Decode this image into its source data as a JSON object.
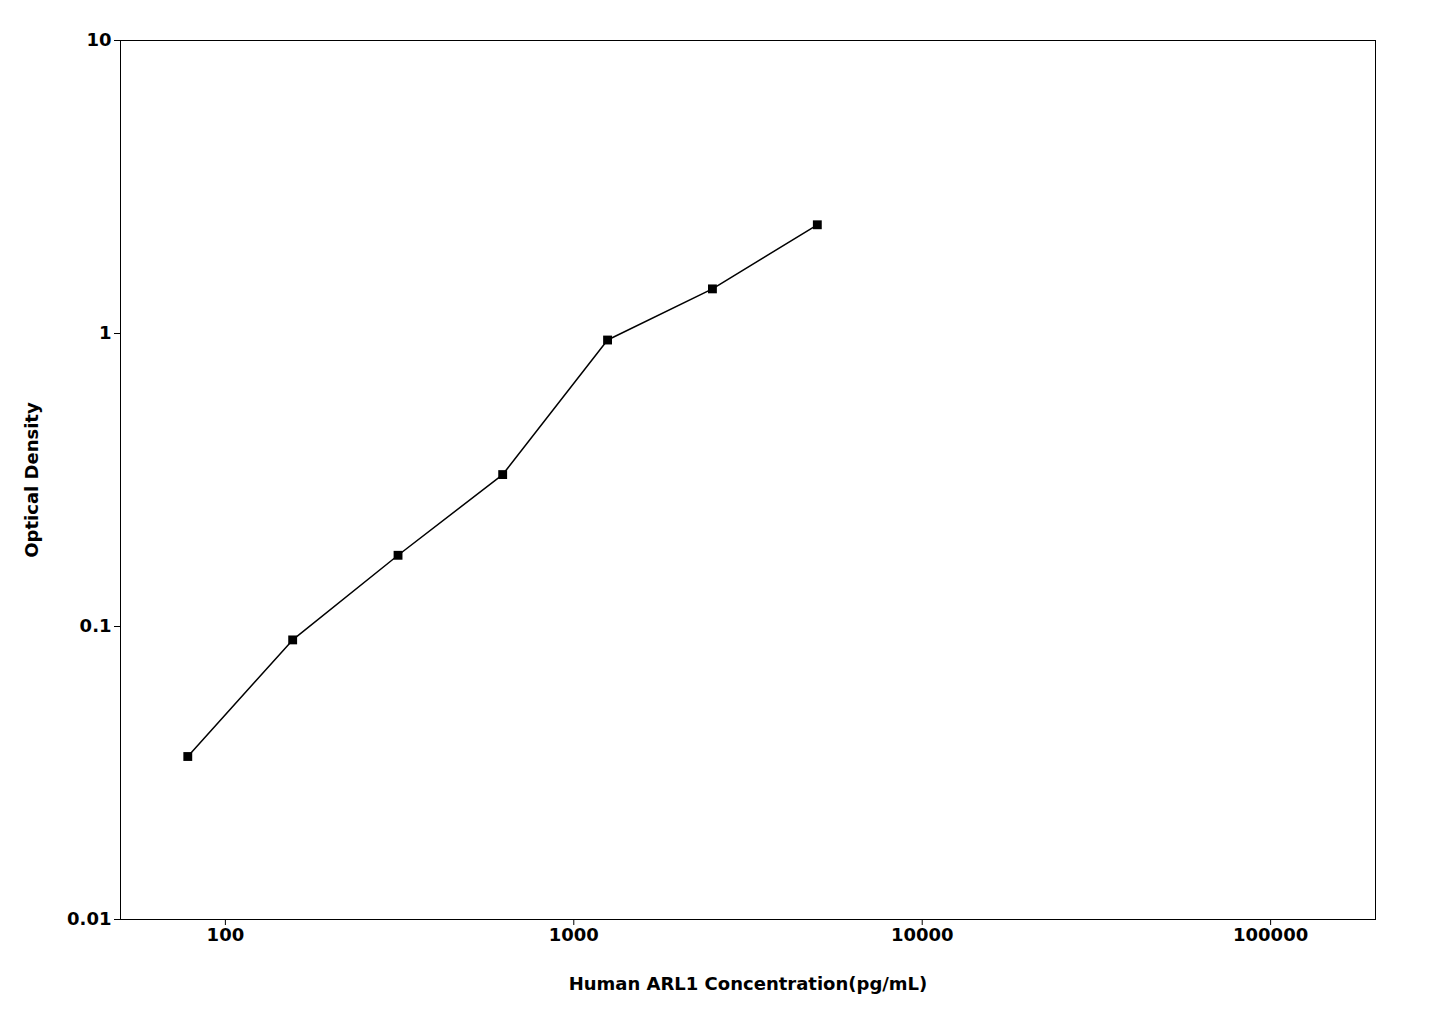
{
  "chart_data": {
    "type": "line",
    "x": [
      78,
      156,
      313,
      625,
      1250,
      2500,
      5000
    ],
    "values": [
      0.036,
      0.09,
      0.175,
      0.33,
      0.95,
      1.42,
      2.35
    ],
    "xlabel": "Human ARL1 Concentration(pg/mL)",
    "ylabel": "Optical Density",
    "xlim": [
      50,
      200000
    ],
    "ylim": [
      0.01,
      10
    ],
    "xticks": [
      100,
      1000,
      10000,
      100000
    ],
    "yticks": [
      0.01,
      0.1,
      1,
      10
    ],
    "log": true,
    "grid": false,
    "color": "#000000",
    "marker": "square"
  }
}
